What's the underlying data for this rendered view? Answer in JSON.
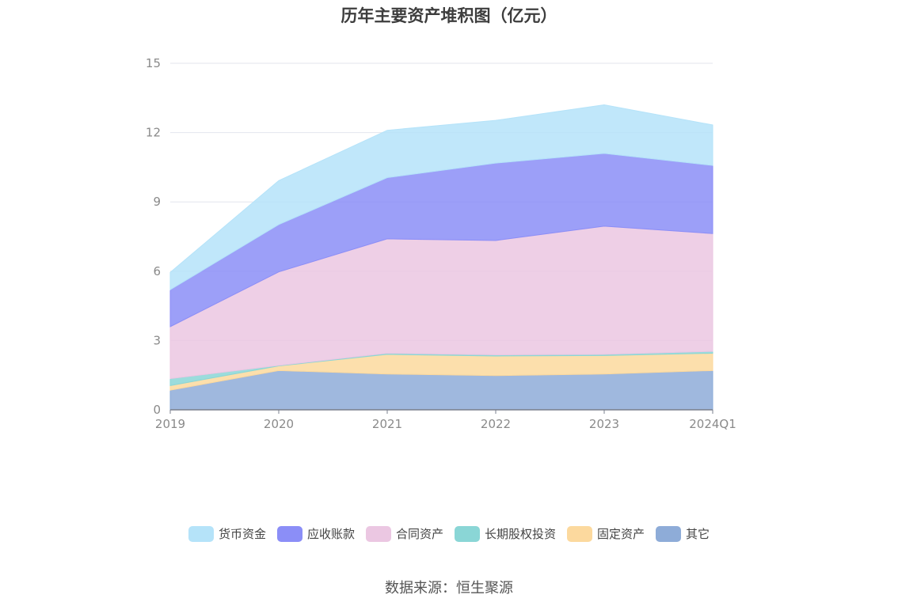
{
  "chart_data": {
    "type": "area",
    "stacked": true,
    "title": "历年主要资产堆积图（亿元）",
    "categories": [
      "2019",
      "2020",
      "2021",
      "2022",
      "2023",
      "2024Q1"
    ],
    "ylim": [
      0,
      15
    ],
    "yticks": [
      0,
      3,
      6,
      9,
      12,
      15
    ],
    "grid": true,
    "legend_position": "bottom",
    "series": [
      {
        "name": "其它",
        "color": "#8eacd8",
        "values": [
          0.85,
          1.7,
          1.55,
          1.48,
          1.55,
          1.7
        ]
      },
      {
        "name": "固定资产",
        "color": "#fcd99e",
        "values": [
          0.2,
          0.2,
          0.85,
          0.85,
          0.8,
          0.75
        ]
      },
      {
        "name": "长期股权投资",
        "color": "#8ad6d6",
        "values": [
          0.3,
          0.02,
          0.05,
          0.05,
          0.05,
          0.08
        ]
      },
      {
        "name": "合同资产",
        "color": "#ebc7e2",
        "values": [
          2.25,
          4.05,
          4.95,
          4.95,
          5.55,
          5.1
        ]
      },
      {
        "name": "应收账款",
        "color": "#8b8ef7",
        "values": [
          1.6,
          2.05,
          2.65,
          3.35,
          3.15,
          2.95
        ]
      },
      {
        "name": "货币资金",
        "color": "#b5e3f9",
        "values": [
          0.75,
          1.9,
          2.05,
          1.85,
          2.1,
          1.75
        ]
      }
    ]
  },
  "legend_order": [
    "货币资金",
    "应收账款",
    "合同资产",
    "长期股权投资",
    "固定资产",
    "其它"
  ],
  "source_text": "数据来源：恒生聚源"
}
